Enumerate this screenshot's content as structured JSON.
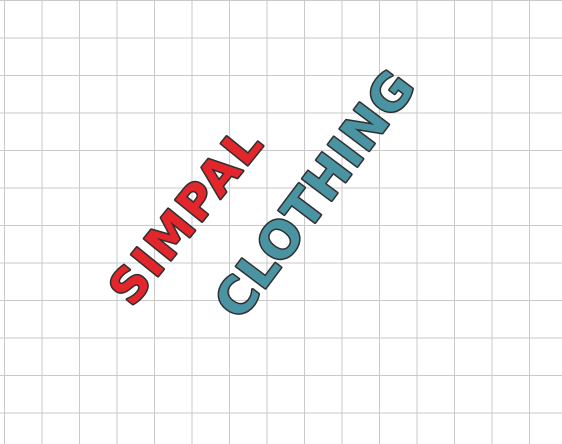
{
  "logo": {
    "line1": "SIMPAL",
    "line2": "CLOTHING",
    "colors": {
      "line1_fill": "#e3262b",
      "line2_fill": "#4a93a2",
      "outline": "#2f2f2f",
      "grid": "#c9c9c9",
      "background": "#ffffff"
    }
  }
}
